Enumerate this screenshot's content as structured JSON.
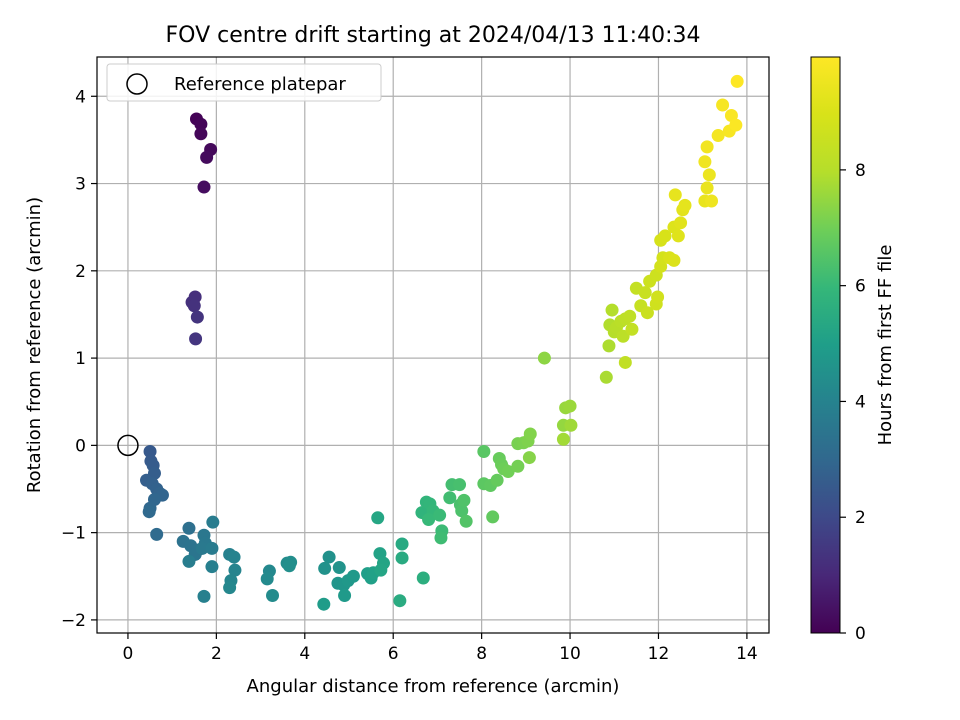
{
  "chart_data": {
    "type": "scatter",
    "title": "FOV centre drift starting at 2024/04/13 11:40:34",
    "xlabel": "Angular distance from reference (arcmin)",
    "ylabel": "Rotation from reference (arcmin)",
    "xlim": [
      -0.7,
      14.5
    ],
    "ylim": [
      -2.15,
      4.45
    ],
    "xticks": [
      0,
      2,
      4,
      6,
      8,
      10,
      12,
      14
    ],
    "yticks": [
      -2,
      -1,
      0,
      1,
      2,
      3,
      4
    ],
    "xtick_labels": [
      "0",
      "2",
      "4",
      "6",
      "8",
      "10",
      "12",
      "14"
    ],
    "ytick_labels": [
      "−2",
      "−1",
      "0",
      "1",
      "2",
      "3",
      "4"
    ],
    "grid": true,
    "legend": {
      "position": "top-left",
      "entries": [
        "Reference platepar"
      ]
    },
    "reference_point": {
      "x": 0,
      "y": 0
    },
    "colorbar": {
      "label": "Hours from first FF file",
      "range": [
        0,
        9.95
      ],
      "ticks": [
        0,
        2,
        4,
        6,
        8
      ],
      "tick_labels": [
        "0",
        "2",
        "4",
        "6",
        "8"
      ],
      "colormap": "viridis"
    },
    "points": [
      {
        "x": 1.55,
        "y": 3.74,
        "t": 0.05
      },
      {
        "x": 1.65,
        "y": 3.68,
        "t": 0.1
      },
      {
        "x": 1.65,
        "y": 3.57,
        "t": 0.15
      },
      {
        "x": 1.87,
        "y": 3.39,
        "t": 0.2
      },
      {
        "x": 1.78,
        "y": 3.3,
        "t": 0.25
      },
      {
        "x": 1.72,
        "y": 2.96,
        "t": 0.3
      },
      {
        "x": 1.52,
        "y": 1.7,
        "t": 1.2
      },
      {
        "x": 1.45,
        "y": 1.64,
        "t": 1.25
      },
      {
        "x": 1.5,
        "y": 1.6,
        "t": 1.3
      },
      {
        "x": 1.57,
        "y": 1.47,
        "t": 1.35
      },
      {
        "x": 1.53,
        "y": 1.22,
        "t": 1.4
      },
      {
        "x": 0.5,
        "y": -0.07,
        "t": 2.5
      },
      {
        "x": 0.52,
        "y": -0.18,
        "t": 2.55
      },
      {
        "x": 0.57,
        "y": -0.23,
        "t": 2.6
      },
      {
        "x": 0.6,
        "y": -0.32,
        "t": 2.65
      },
      {
        "x": 0.42,
        "y": -0.4,
        "t": 2.7
      },
      {
        "x": 0.55,
        "y": -0.44,
        "t": 2.75
      },
      {
        "x": 0.65,
        "y": -0.5,
        "t": 2.8
      },
      {
        "x": 0.72,
        "y": -0.55,
        "t": 2.85
      },
      {
        "x": 0.78,
        "y": -0.57,
        "t": 2.9
      },
      {
        "x": 0.6,
        "y": -0.62,
        "t": 2.95
      },
      {
        "x": 0.5,
        "y": -0.72,
        "t": 3.0
      },
      {
        "x": 0.48,
        "y": -0.76,
        "t": 3.05
      },
      {
        "x": 0.65,
        "y": -1.02,
        "t": 3.1
      },
      {
        "x": 1.38,
        "y": -0.95,
        "t": 3.3
      },
      {
        "x": 1.25,
        "y": -1.1,
        "t": 3.35
      },
      {
        "x": 1.42,
        "y": -1.15,
        "t": 3.4
      },
      {
        "x": 1.58,
        "y": -1.2,
        "t": 3.45
      },
      {
        "x": 1.52,
        "y": -1.25,
        "t": 3.5
      },
      {
        "x": 1.72,
        "y": -1.03,
        "t": 3.55
      },
      {
        "x": 1.75,
        "y": -1.12,
        "t": 3.6
      },
      {
        "x": 1.68,
        "y": -1.18,
        "t": 3.65
      },
      {
        "x": 1.9,
        "y": -1.18,
        "t": 3.7
      },
      {
        "x": 1.92,
        "y": -0.88,
        "t": 3.75
      },
      {
        "x": 1.38,
        "y": -1.33,
        "t": 3.8
      },
      {
        "x": 1.9,
        "y": -1.39,
        "t": 3.85
      },
      {
        "x": 1.72,
        "y": -1.73,
        "t": 3.9
      },
      {
        "x": 2.3,
        "y": -1.25,
        "t": 3.95
      },
      {
        "x": 2.4,
        "y": -1.28,
        "t": 4.0
      },
      {
        "x": 2.42,
        "y": -1.43,
        "t": 4.05
      },
      {
        "x": 2.33,
        "y": -1.55,
        "t": 4.1
      },
      {
        "x": 2.3,
        "y": -1.63,
        "t": 4.15
      },
      {
        "x": 3.2,
        "y": -1.44,
        "t": 4.2
      },
      {
        "x": 3.15,
        "y": -1.53,
        "t": 4.25
      },
      {
        "x": 3.27,
        "y": -1.72,
        "t": 4.3
      },
      {
        "x": 3.6,
        "y": -1.35,
        "t": 4.35
      },
      {
        "x": 3.68,
        "y": -1.34,
        "t": 4.4
      },
      {
        "x": 3.65,
        "y": -1.38,
        "t": 4.45
      },
      {
        "x": 4.55,
        "y": -1.28,
        "t": 4.5
      },
      {
        "x": 4.45,
        "y": -1.41,
        "t": 4.55
      },
      {
        "x": 4.78,
        "y": -1.4,
        "t": 4.6
      },
      {
        "x": 4.75,
        "y": -1.58,
        "t": 4.65
      },
      {
        "x": 4.88,
        "y": -1.6,
        "t": 4.7
      },
      {
        "x": 4.98,
        "y": -1.55,
        "t": 4.75
      },
      {
        "x": 5.1,
        "y": -1.5,
        "t": 4.8
      },
      {
        "x": 4.9,
        "y": -1.72,
        "t": 4.85
      },
      {
        "x": 4.43,
        "y": -1.82,
        "t": 4.9
      },
      {
        "x": 5.42,
        "y": -1.47,
        "t": 5.0
      },
      {
        "x": 5.5,
        "y": -1.52,
        "t": 5.05
      },
      {
        "x": 5.55,
        "y": -1.46,
        "t": 5.1
      },
      {
        "x": 5.7,
        "y": -1.24,
        "t": 5.15
      },
      {
        "x": 5.78,
        "y": -1.35,
        "t": 5.2
      },
      {
        "x": 5.72,
        "y": -1.43,
        "t": 5.25
      },
      {
        "x": 5.65,
        "y": -0.83,
        "t": 5.3
      },
      {
        "x": 6.2,
        "y": -1.13,
        "t": 5.4
      },
      {
        "x": 6.2,
        "y": -1.29,
        "t": 5.45
      },
      {
        "x": 6.15,
        "y": -1.78,
        "t": 5.5
      },
      {
        "x": 6.68,
        "y": -1.52,
        "t": 5.6
      },
      {
        "x": 6.65,
        "y": -0.77,
        "t": 5.8
      },
      {
        "x": 6.75,
        "y": -0.65,
        "t": 5.85
      },
      {
        "x": 6.83,
        "y": -0.67,
        "t": 5.9
      },
      {
        "x": 6.9,
        "y": -0.75,
        "t": 5.95
      },
      {
        "x": 6.8,
        "y": -0.85,
        "t": 6.0
      },
      {
        "x": 7.05,
        "y": -0.8,
        "t": 6.05
      },
      {
        "x": 7.1,
        "y": -0.98,
        "t": 6.1
      },
      {
        "x": 7.08,
        "y": -1.06,
        "t": 6.15
      },
      {
        "x": 7.28,
        "y": -0.6,
        "t": 6.2
      },
      {
        "x": 7.33,
        "y": -0.45,
        "t": 6.25
      },
      {
        "x": 7.5,
        "y": -0.45,
        "t": 6.3
      },
      {
        "x": 7.52,
        "y": -0.68,
        "t": 6.35
      },
      {
        "x": 7.55,
        "y": -0.75,
        "t": 6.4
      },
      {
        "x": 7.6,
        "y": -0.63,
        "t": 6.45
      },
      {
        "x": 7.65,
        "y": -0.87,
        "t": 6.5
      },
      {
        "x": 8.05,
        "y": -0.07,
        "t": 6.6
      },
      {
        "x": 8.05,
        "y": -0.44,
        "t": 6.65
      },
      {
        "x": 8.2,
        "y": -0.46,
        "t": 6.7
      },
      {
        "x": 8.25,
        "y": -0.82,
        "t": 6.75
      },
      {
        "x": 8.35,
        "y": -0.4,
        "t": 6.8
      },
      {
        "x": 8.4,
        "y": -0.15,
        "t": 6.85
      },
      {
        "x": 8.45,
        "y": -0.22,
        "t": 6.9
      },
      {
        "x": 8.5,
        "y": -0.27,
        "t": 6.95
      },
      {
        "x": 8.6,
        "y": -0.3,
        "t": 7.0
      },
      {
        "x": 8.82,
        "y": -0.24,
        "t": 7.05
      },
      {
        "x": 8.82,
        "y": 0.02,
        "t": 7.1
      },
      {
        "x": 8.95,
        "y": 0.03,
        "t": 7.15
      },
      {
        "x": 9.05,
        "y": 0.05,
        "t": 7.2
      },
      {
        "x": 9.1,
        "y": 0.13,
        "t": 7.25
      },
      {
        "x": 9.08,
        "y": -0.14,
        "t": 7.3
      },
      {
        "x": 9.42,
        "y": 1.0,
        "t": 7.4
      },
      {
        "x": 9.85,
        "y": 0.23,
        "t": 7.5
      },
      {
        "x": 9.9,
        "y": 0.43,
        "t": 7.55
      },
      {
        "x": 10.0,
        "y": 0.45,
        "t": 7.6
      },
      {
        "x": 10.02,
        "y": 0.23,
        "t": 7.65
      },
      {
        "x": 9.85,
        "y": 0.07,
        "t": 7.7
      },
      {
        "x": 10.82,
        "y": 0.78,
        "t": 7.8
      },
      {
        "x": 10.88,
        "y": 1.14,
        "t": 7.85
      },
      {
        "x": 10.9,
        "y": 1.38,
        "t": 7.9
      },
      {
        "x": 10.95,
        "y": 1.55,
        "t": 7.95
      },
      {
        "x": 11.0,
        "y": 1.3,
        "t": 8.0
      },
      {
        "x": 11.05,
        "y": 1.35,
        "t": 8.05
      },
      {
        "x": 11.15,
        "y": 1.42,
        "t": 8.1
      },
      {
        "x": 11.2,
        "y": 1.25,
        "t": 8.15
      },
      {
        "x": 11.25,
        "y": 1.45,
        "t": 8.2
      },
      {
        "x": 11.35,
        "y": 1.48,
        "t": 8.25
      },
      {
        "x": 11.25,
        "y": 0.95,
        "t": 8.3
      },
      {
        "x": 11.4,
        "y": 1.33,
        "t": 8.35
      },
      {
        "x": 11.5,
        "y": 1.8,
        "t": 8.4
      },
      {
        "x": 11.6,
        "y": 1.6,
        "t": 8.45
      },
      {
        "x": 11.7,
        "y": 1.75,
        "t": 8.5
      },
      {
        "x": 11.75,
        "y": 1.52,
        "t": 8.55
      },
      {
        "x": 11.8,
        "y": 1.88,
        "t": 8.6
      },
      {
        "x": 11.95,
        "y": 1.95,
        "t": 8.65
      },
      {
        "x": 11.95,
        "y": 1.62,
        "t": 8.7
      },
      {
        "x": 11.98,
        "y": 1.7,
        "t": 8.75
      },
      {
        "x": 12.05,
        "y": 2.05,
        "t": 8.8
      },
      {
        "x": 12.1,
        "y": 2.15,
        "t": 8.85
      },
      {
        "x": 12.05,
        "y": 2.35,
        "t": 8.9
      },
      {
        "x": 12.15,
        "y": 2.4,
        "t": 8.95
      },
      {
        "x": 12.25,
        "y": 2.15,
        "t": 9.0
      },
      {
        "x": 12.35,
        "y": 2.12,
        "t": 9.05
      },
      {
        "x": 12.35,
        "y": 2.5,
        "t": 9.1
      },
      {
        "x": 12.45,
        "y": 2.4,
        "t": 9.15
      },
      {
        "x": 12.5,
        "y": 2.55,
        "t": 9.2
      },
      {
        "x": 12.55,
        "y": 2.7,
        "t": 9.25
      },
      {
        "x": 12.6,
        "y": 2.75,
        "t": 9.3
      },
      {
        "x": 12.38,
        "y": 2.87,
        "t": 9.35
      },
      {
        "x": 13.05,
        "y": 2.8,
        "t": 9.4
      },
      {
        "x": 13.1,
        "y": 2.95,
        "t": 9.45
      },
      {
        "x": 13.15,
        "y": 3.1,
        "t": 9.5
      },
      {
        "x": 13.2,
        "y": 2.8,
        "t": 9.55
      },
      {
        "x": 13.05,
        "y": 3.25,
        "t": 9.6
      },
      {
        "x": 13.1,
        "y": 3.42,
        "t": 9.65
      },
      {
        "x": 13.35,
        "y": 3.55,
        "t": 9.7
      },
      {
        "x": 13.45,
        "y": 3.9,
        "t": 9.75
      },
      {
        "x": 13.6,
        "y": 3.6,
        "t": 9.8
      },
      {
        "x": 13.65,
        "y": 3.78,
        "t": 9.85
      },
      {
        "x": 13.75,
        "y": 3.67,
        "t": 9.9
      },
      {
        "x": 13.78,
        "y": 4.17,
        "t": 9.95
      }
    ]
  }
}
